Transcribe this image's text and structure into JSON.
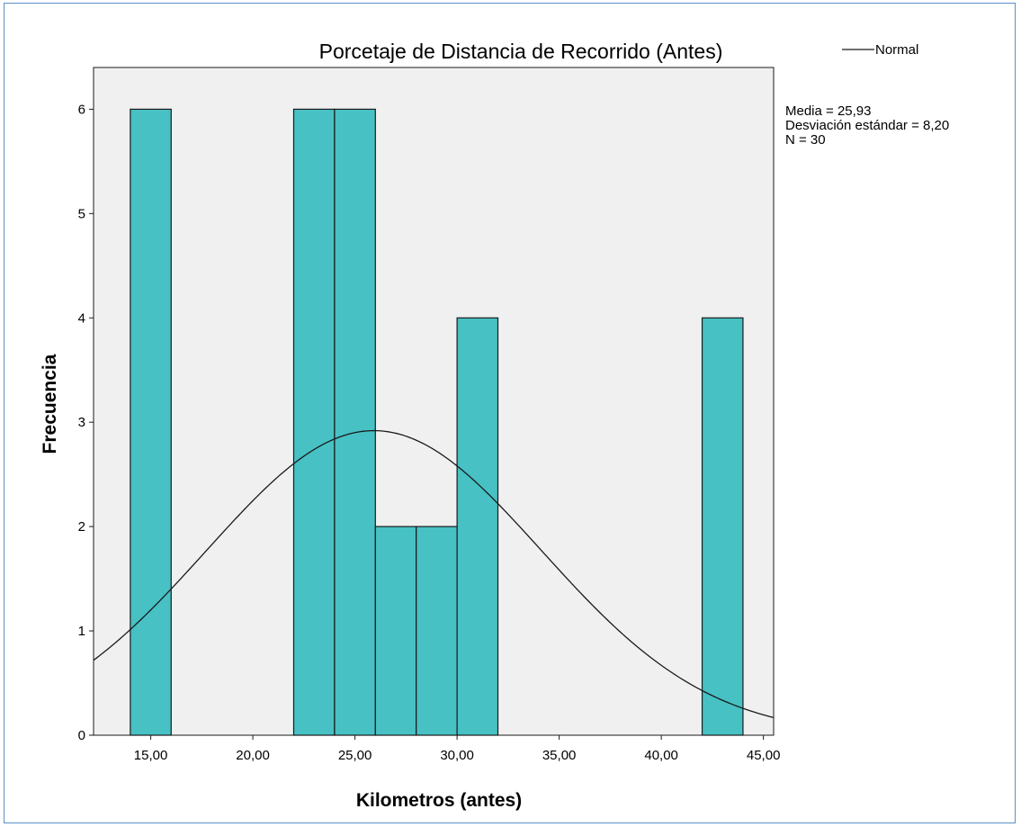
{
  "chart_data": {
    "type": "bar",
    "subtype": "histogram",
    "title": "Porcetaje de Distancia de Recorrido (Antes)",
    "xlabel": "Kilometros (antes)",
    "ylabel": "Frecuencia",
    "xlim": [
      12.2,
      45.5
    ],
    "ylim": [
      0,
      6.4
    ],
    "x_ticks": [
      15,
      20,
      25,
      30,
      35,
      40,
      45
    ],
    "x_tick_labels": [
      "15,00",
      "20,00",
      "25,00",
      "30,00",
      "35,00",
      "40,00",
      "45,00"
    ],
    "y_ticks": [
      0,
      1,
      2,
      3,
      4,
      5,
      6
    ],
    "y_tick_labels": [
      "0",
      "1",
      "2",
      "3",
      "4",
      "5",
      "6"
    ],
    "bins": [
      {
        "start": 14,
        "end": 16,
        "count": 6
      },
      {
        "start": 22,
        "end": 24,
        "count": 6
      },
      {
        "start": 24,
        "end": 26,
        "count": 6
      },
      {
        "start": 26,
        "end": 28,
        "count": 2
      },
      {
        "start": 28,
        "end": 30,
        "count": 2
      },
      {
        "start": 30,
        "end": 32,
        "count": 4
      },
      {
        "start": 42,
        "end": 44,
        "count": 4
      }
    ],
    "normal_curve": {
      "mean": 25.93,
      "sd": 8.2,
      "n": 30,
      "bin_width": 2
    },
    "legend": {
      "entries": [
        "Normal"
      ],
      "position": "top-right"
    },
    "stats": {
      "mean_text": "Media = 25,93",
      "sd_text": "Desviación estándar = 8,20",
      "n_text": "N = 30"
    },
    "colors": {
      "bar_fill": "#47c1c4",
      "bar_stroke": "#1a1a1a",
      "plot_background": "#f0f0f0",
      "curve": "#1a1a1a",
      "frame": "#5b8fc7"
    },
    "grid": false
  }
}
